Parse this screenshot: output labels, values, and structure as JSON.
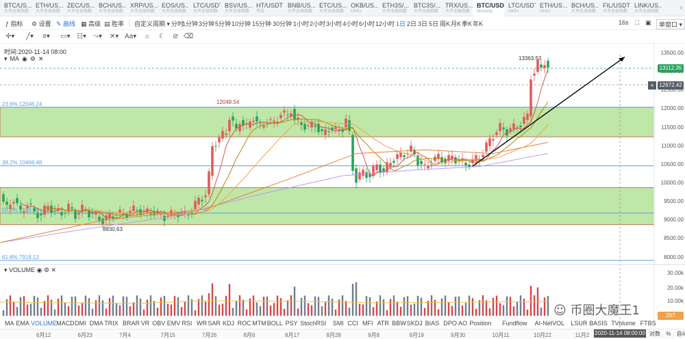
{
  "tabs": [
    {
      "symbol": "BTC/US...",
      "sub": "大币全球指数"
    },
    {
      "symbol": "ETH/US...",
      "sub": "大币全球指数"
    },
    {
      "symbol": "ZEC/US...",
      "sub": "大币全球指数"
    },
    {
      "symbol": "BCH/US...",
      "sub": "大币全球指数"
    },
    {
      "symbol": "XRP/US...",
      "sub": "大币全球指数"
    },
    {
      "symbol": "EOS/US...",
      "sub": "大币全球指数"
    },
    {
      "symbol": "LTC/USDT",
      "sub": "大币全球指数"
    },
    {
      "symbol": "BSV/US...",
      "sub": "大币全球指数"
    },
    {
      "symbol": "HT/USDT",
      "sub": "币安"
    },
    {
      "symbol": "BNB/US...",
      "sub": "大币全球指数"
    },
    {
      "symbol": "ETC/US...",
      "sub": "大币全球指数"
    },
    {
      "symbol": "OKB/US...",
      "sub": "OKEx"
    },
    {
      "symbol": "ETH3S/...",
      "sub": "大币全球指数"
    },
    {
      "symbol": "BTC3S/...",
      "sub": "大币全球指数"
    },
    {
      "symbol": "TRX/US...",
      "sub": "大币全球指数"
    },
    {
      "symbol": "BTC/USD",
      "sub": "Bitstamp",
      "active": true
    },
    {
      "symbol": "LTC/USDT",
      "sub": "OKEx"
    },
    {
      "symbol": "ETH/US...",
      "sub": "OKEx"
    },
    {
      "symbol": "BCH/US...",
      "sub": "大币全球指数"
    },
    {
      "symbol": "FIL/USDT",
      "sub": "大币全球指数"
    },
    {
      "symbol": "LINK/US...",
      "sub": "大币全球指数"
    }
  ],
  "toolbar": {
    "indicators": "指标",
    "settings": "设置",
    "drawing": "画线",
    "advanced": "高级",
    "winrate": "胜率",
    "custom_period": "自定义周期",
    "periods": [
      "分时",
      "1分钟",
      "3分钟",
      "5分钟",
      "10分钟",
      "15分钟",
      "30分钟",
      "1小时",
      "2小时",
      "3小时",
      "4小时",
      "6小时",
      "12小时",
      "1日",
      "2日",
      "3日",
      "5日",
      "周K",
      "月K",
      "季K",
      "年K"
    ],
    "active_period": "1日",
    "countdown": "16s",
    "single_window": "单窗口"
  },
  "chart": {
    "time_info": "时间:2020-11-14 08:00",
    "ma_label": "MA",
    "volume_label": "VOLUME",
    "high_label": "13363.53",
    "prev_high_label": "12048.54",
    "low_label": "8830.63",
    "fib_levels": [
      {
        "label": "23.6% 12046.24",
        "price": 12046.24
      },
      {
        "label": "38.2% 10468.48",
        "price": 10468.48
      },
      {
        "label": "50.0% 9193.30",
        "price": 9193.3
      },
      {
        "label": "61.8% 7918.13",
        "price": 7918.13
      }
    ],
    "price_axis": [
      "13500.00",
      "13000.00",
      "12500.00",
      "12000.00",
      "11500.00",
      "11000.00",
      "10500.00",
      "10000.00",
      "9500.00",
      "9000.00",
      "8500.00",
      "8000.00"
    ],
    "current_price_tag": "13112.35",
    "cursor_price_tag": "12672.42",
    "volume_axis": [
      "30.00k",
      "20.00k",
      "10.00k"
    ],
    "volume_tag": "297",
    "colors": {
      "up": "#e25a5a",
      "down": "#2aa15d",
      "zone_fill": "#bfe7a8",
      "fib_line": "#5c9de0",
      "ma_red": "#d9534f",
      "ma_orange": "#f0a24a",
      "ma_purple": "#b69df0",
      "volume_up": "#d64545",
      "volume_down": "#6f7c8c"
    }
  },
  "indicators": [
    "MA",
    "EMA",
    "VOLUME",
    "MACD",
    "DMI",
    "DMA",
    "TRIX",
    "BRAR",
    "VR",
    "OBV",
    "EMV",
    "RSI",
    "WR",
    "SAR",
    "KDJ",
    "ROC",
    "MTM",
    "BOLL",
    "PSY",
    "StochRSI",
    "SMI",
    "CCI",
    "MFI",
    "ATR",
    "BBW",
    "SKDJ",
    "BIAS",
    "DPO",
    "AO",
    "Position",
    "Fundflow",
    "AI-NetVOL",
    "LSUR",
    "BASIS",
    "TVolume",
    "FTBS"
  ],
  "active_indicator": "VOLUME",
  "dates": [
    "6月12",
    "6月23",
    "7月4",
    "7月15",
    "7月26",
    "8月6",
    "8月17",
    "8月28",
    "9月8",
    "9月19",
    "9月30",
    "10月11",
    "10月22",
    "11月2"
  ],
  "time_badge": "2020-11-14 08:00:00",
  "axis_mode": [
    "对数",
    "%",
    "自动"
  ],
  "watermark": "币圈大魔王1"
}
